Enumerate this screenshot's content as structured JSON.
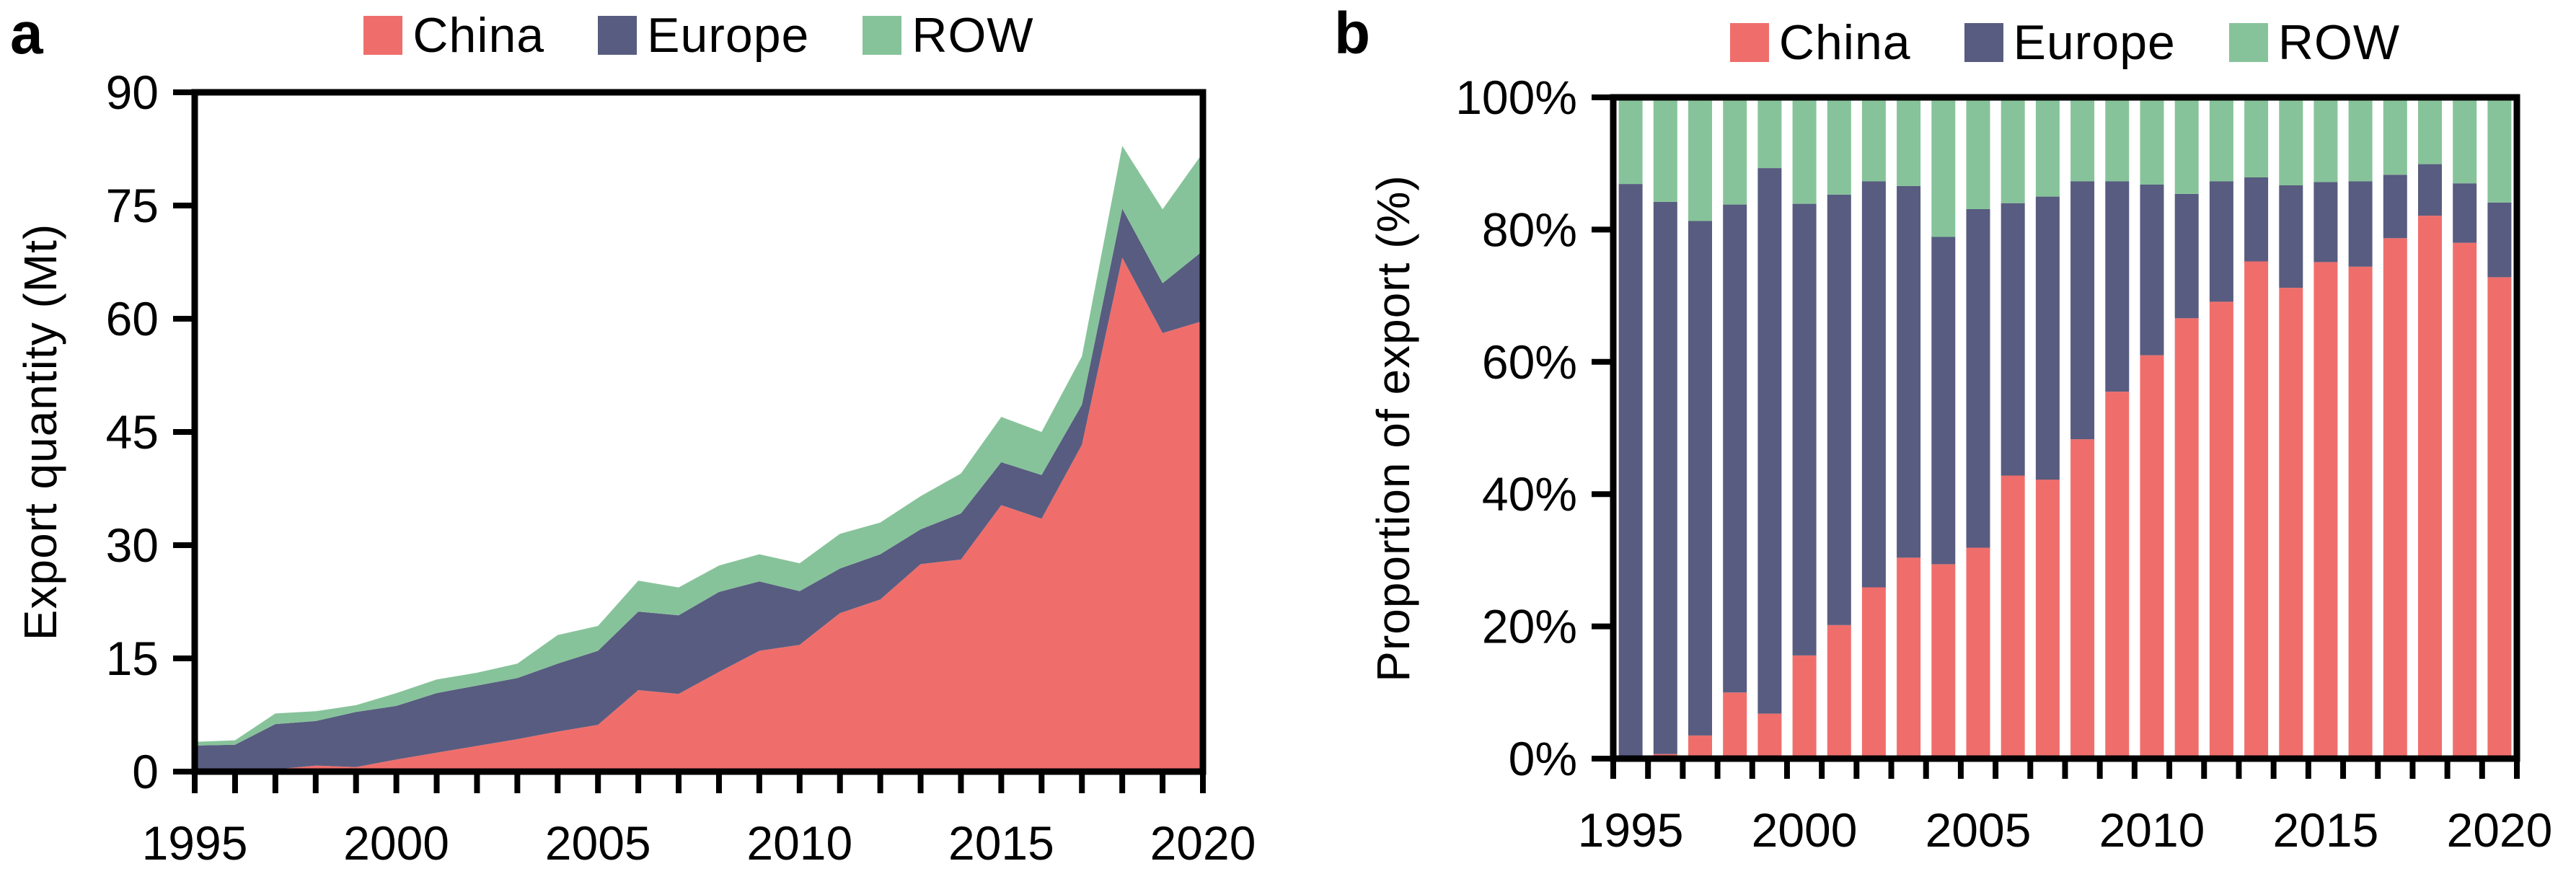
{
  "figure": {
    "background": "#ffffff",
    "colors": {
      "china": "#ef6e6b",
      "europe": "#585c80",
      "row": "#87c39a",
      "axis": "#000000"
    },
    "legend_labels": [
      "China",
      "Europe",
      "ROW"
    ]
  },
  "panel_a": {
    "label": "a",
    "ylabel": "Export quantity (Mt)",
    "ytick_labels": [
      "0",
      "15",
      "30",
      "45",
      "60",
      "75",
      "90"
    ],
    "xtick_labels": [
      "1995",
      "2000",
      "2005",
      "2010",
      "2015",
      "2020"
    ]
  },
  "panel_b": {
    "label": "b",
    "ylabel": "Proportion of export (%)",
    "ytick_labels": [
      "0%",
      "20%",
      "40%",
      "60%",
      "80%",
      "100%"
    ],
    "xtick_labels": [
      "1995",
      "2000",
      "2005",
      "2010",
      "2015",
      "2020"
    ]
  },
  "chart_data": [
    {
      "type": "area",
      "stacked": true,
      "title": "",
      "xlabel": "",
      "ylabel": "Export quantity (Mt)",
      "ylim": [
        0,
        90
      ],
      "yticks": [
        0,
        15,
        30,
        45,
        60,
        75,
        90
      ],
      "grid": false,
      "legend_position": "top",
      "x": [
        1995,
        1996,
        1997,
        1998,
        1999,
        2000,
        2001,
        2002,
        2003,
        2004,
        2005,
        2006,
        2007,
        2008,
        2009,
        2010,
        2011,
        2012,
        2013,
        2014,
        2015,
        2016,
        2017,
        2018,
        2019,
        2020
      ],
      "series": [
        {
          "name": "China",
          "color": "#ef6e6b",
          "values": [
            0.05,
            0.05,
            0.3,
            0.8,
            0.6,
            1.6,
            2.5,
            3.4,
            4.3,
            5.3,
            6.2,
            10.8,
            10.3,
            13.2,
            16.0,
            16.8,
            21.0,
            22.8,
            27.5,
            28.1,
            35.3,
            33.5,
            43.3,
            68.1,
            58.1,
            59.7
          ]
        },
        {
          "name": "Europe",
          "color": "#585c80",
          "values": [
            3.4,
            3.5,
            6.0,
            5.9,
            7.3,
            7.1,
            7.9,
            8.0,
            8.1,
            9.0,
            9.8,
            10.4,
            10.4,
            10.6,
            9.2,
            7.1,
            5.9,
            6.0,
            4.6,
            6.1,
            5.7,
            5.8,
            5.3,
            6.5,
            6.6,
            9.3
          ]
        },
        {
          "name": "ROW",
          "color": "#87c39a",
          "values": [
            0.5,
            0.6,
            1.4,
            1.3,
            0.9,
            1.7,
            1.8,
            1.7,
            1.9,
            3.8,
            3.3,
            4.1,
            3.7,
            3.5,
            3.6,
            3.7,
            4.6,
            4.2,
            4.4,
            5.3,
            6.0,
            5.7,
            6.4,
            8.3,
            9.8,
            13.0
          ]
        }
      ]
    },
    {
      "type": "bar",
      "stacked": true,
      "unit": "percent",
      "title": "",
      "xlabel": "",
      "ylabel": "Proportion of export (%)",
      "ylim": [
        0,
        100
      ],
      "yticks": [
        0,
        20,
        40,
        60,
        80,
        100
      ],
      "grid": false,
      "legend_position": "top",
      "x": [
        1995,
        1996,
        1997,
        1998,
        1999,
        2000,
        2001,
        2002,
        2003,
        2004,
        2005,
        2006,
        2007,
        2008,
        2009,
        2010,
        2011,
        2012,
        2013,
        2014,
        2015,
        2016,
        2017,
        2018,
        2019,
        2020
      ],
      "series": [
        {
          "name": "China",
          "color": "#ef6e6b",
          "values": [
            0.3,
            0.7,
            3.5,
            10.0,
            6.8,
            15.6,
            20.2,
            25.9,
            30.4,
            29.4,
            31.9,
            42.8,
            42.2,
            48.3,
            55.5,
            61.0,
            66.6,
            69.1,
            75.2,
            71.2,
            75.1,
            74.4,
            78.7,
            82.1,
            78.0,
            72.8
          ]
        },
        {
          "name": "Europe",
          "color": "#585c80",
          "values": [
            86.6,
            83.5,
            77.8,
            73.8,
            82.5,
            68.3,
            65.1,
            61.4,
            56.2,
            49.5,
            51.2,
            41.2,
            42.8,
            39.0,
            31.8,
            25.8,
            18.8,
            18.2,
            12.7,
            15.5,
            12.1,
            12.9,
            9.6,
            7.8,
            9.0,
            11.3
          ]
        },
        {
          "name": "ROW",
          "color": "#87c39a",
          "values": [
            13.1,
            15.8,
            18.7,
            16.2,
            10.7,
            16.1,
            14.7,
            12.7,
            13.4,
            21.1,
            16.9,
            16.0,
            15.0,
            12.7,
            12.7,
            13.2,
            14.6,
            12.7,
            12.1,
            13.3,
            12.8,
            12.7,
            11.7,
            10.1,
            13.0,
            15.9
          ]
        }
      ]
    }
  ]
}
